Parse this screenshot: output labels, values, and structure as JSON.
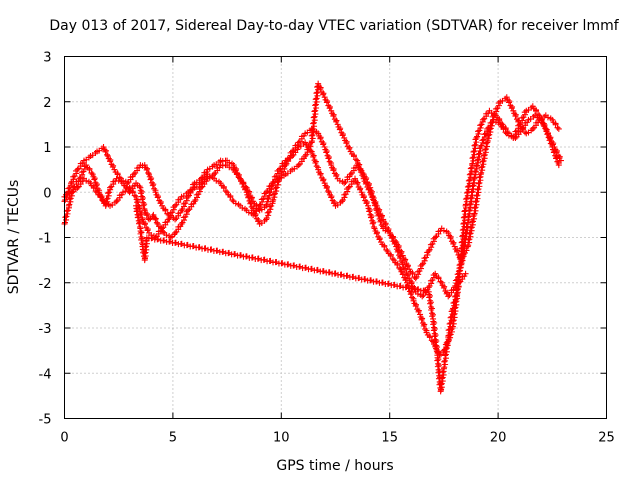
{
  "chart_data": {
    "type": "scatter",
    "title": "Day 013 of 2017, Sidereal Day-to-day VTEC variation (SDTVAR) for receiver lmmf",
    "xlabel": "GPS time / hours",
    "ylabel": "SDTVAR / TECUs",
    "xlim": [
      0,
      25
    ],
    "ylim": [
      -5,
      3
    ],
    "xticks": [
      "0",
      "5",
      "10",
      "15",
      "20",
      "25"
    ],
    "yticks": [
      "-5",
      "-4",
      "-3",
      "-2",
      "-1",
      "0",
      "1",
      "2",
      "3"
    ],
    "grid": true,
    "marker": "plus",
    "color": "#ff0000",
    "series": [
      {
        "x": [
          0.0,
          0.2,
          0.4,
          0.7,
          1.0,
          1.3,
          1.6,
          1.9,
          2.1,
          2.4,
          2.7,
          3.0,
          3.3,
          3.5,
          3.7,
          3.9,
          4.1,
          4.3,
          4.6,
          4.9,
          5.1,
          5.4,
          5.7,
          6.0,
          6.3,
          6.6,
          6.9,
          7.2,
          7.5,
          7.8,
          8.1,
          8.4,
          8.7,
          9.0,
          9.3,
          9.6,
          9.9,
          10.2,
          10.5,
          10.8,
          11.1,
          11.4,
          11.7,
          12.0,
          12.2,
          12.5,
          12.8,
          13.1,
          13.4,
          13.7,
          14.0,
          14.3,
          14.6,
          14.9,
          15.2,
          15.5,
          15.8,
          16.1,
          16.4,
          16.7,
          17.0,
          17.3,
          17.5,
          17.7,
          17.9,
          18.1,
          18.3,
          18.5,
          18.8,
          19.0,
          19.3,
          19.6,
          19.9,
          20.2,
          20.5,
          20.8,
          21.1,
          21.4,
          21.7,
          22.0,
          22.3,
          22.6,
          22.9
        ],
        "y": [
          -0.7,
          -0.3,
          0.1,
          0.3,
          0.6,
          0.4,
          0.0,
          -0.3,
          0.1,
          0.3,
          0.2,
          0.0,
          0.2,
          0.1,
          -0.4,
          -0.6,
          -0.5,
          -0.7,
          -0.9,
          -1.0,
          -0.9,
          -0.7,
          -0.4,
          -0.2,
          0.1,
          0.3,
          0.4,
          0.6,
          0.6,
          0.5,
          0.3,
          0.1,
          -0.2,
          -0.4,
          -0.3,
          0.2,
          0.5,
          0.7,
          0.8,
          1.0,
          1.1,
          0.9,
          0.5,
          0.2,
          0.0,
          -0.3,
          -0.2,
          0.1,
          0.3,
          0.0,
          -0.3,
          -0.8,
          -1.1,
          -1.3,
          -1.5,
          -1.7,
          -2.0,
          -2.4,
          -2.7,
          -3.1,
          -3.3,
          -3.6,
          -3.5,
          -3.3,
          -3.0,
          -2.3,
          -1.4,
          -0.3,
          0.6,
          1.2,
          1.6,
          1.8,
          1.7,
          1.5,
          1.3,
          1.2,
          1.4,
          1.6,
          1.7,
          1.6,
          1.3,
          1.0,
          0.7
        ]
      },
      {
        "x": [
          0.0,
          0.3,
          0.6,
          0.9,
          1.2,
          1.5,
          1.8,
          2.0,
          2.3,
          2.6,
          2.9,
          3.2,
          3.5,
          3.7,
          3.9,
          4.2,
          4.5,
          4.8,
          5.1,
          5.4,
          5.7,
          6.0,
          6.3,
          6.6,
          6.9,
          7.2,
          7.5,
          7.8,
          8.1,
          8.4,
          8.7,
          9.0,
          9.3,
          9.6,
          9.9,
          10.2,
          10.5,
          10.8,
          11.1,
          11.4,
          11.7,
          12.0,
          12.3,
          12.6,
          12.9,
          13.2,
          13.5,
          13.8,
          14.1,
          14.4,
          14.7,
          15.0,
          15.3,
          15.6,
          15.9,
          16.2,
          16.5,
          16.8,
          17.1,
          17.4,
          17.7,
          18.0,
          18.3,
          18.6,
          18.9,
          19.2,
          19.5,
          19.8,
          20.1,
          20.4,
          20.7,
          21.0,
          21.3,
          21.6,
          21.9,
          22.2,
          22.5,
          22.8
        ],
        "y": [
          -0.2,
          0.2,
          0.5,
          0.7,
          0.8,
          0.9,
          1.0,
          0.8,
          0.5,
          0.3,
          0.2,
          0.4,
          0.6,
          0.6,
          0.4,
          0.0,
          -0.3,
          -0.5,
          -0.6,
          -0.4,
          -0.1,
          0.2,
          0.3,
          0.5,
          0.6,
          0.7,
          0.7,
          0.6,
          0.3,
          0.0,
          -0.4,
          -0.7,
          -0.6,
          -0.2,
          0.3,
          0.6,
          0.9,
          1.1,
          1.3,
          1.4,
          1.3,
          1.0,
          0.6,
          0.3,
          0.2,
          0.4,
          0.6,
          0.4,
          0.1,
          -0.4,
          -0.8,
          -0.9,
          -1.2,
          -1.6,
          -1.9,
          -2.2,
          -2.3,
          -2.1,
          -1.8,
          -2.0,
          -2.3,
          -2.1,
          -1.6,
          -0.7,
          0.3,
          1.0,
          1.4,
          1.6,
          1.5,
          1.3,
          1.2,
          1.5,
          1.8,
          1.9,
          1.7,
          1.4,
          1.0,
          0.6
        ]
      },
      {
        "x": [
          0.0,
          0.3,
          0.6,
          0.9,
          1.2,
          1.5,
          1.8,
          2.1,
          2.4,
          2.7,
          3.0,
          3.3,
          3.6,
          3.9,
          4.2,
          4.5,
          4.8,
          5.1,
          5.4,
          5.7,
          6.0,
          6.3,
          6.6,
          6.9,
          7.2,
          7.5,
          7.8,
          8.1,
          8.4,
          8.7,
          9.0,
          9.3,
          9.6,
          9.9,
          10.2,
          10.5,
          10.8,
          11.1,
          11.4,
          11.7,
          12.0,
          12.3,
          12.6,
          12.9,
          13.2,
          13.5,
          13.8,
          14.1,
          14.4,
          14.7,
          15.0,
          15.3,
          15.6,
          15.9,
          16.2,
          16.5,
          16.8,
          17.1,
          17.4,
          17.7,
          18.0,
          18.3,
          18.6,
          18.9,
          19.2,
          19.5,
          19.8,
          20.1,
          20.4,
          20.7,
          21.0,
          21.3,
          21.6,
          21.9,
          22.2,
          22.5,
          22.8
        ],
        "y": [
          -0.1,
          0.0,
          0.1,
          0.3,
          0.2,
          0.0,
          -0.2,
          -0.3,
          -0.2,
          0.0,
          0.1,
          -0.1,
          -0.6,
          -0.9,
          -1.0,
          -0.8,
          -0.6,
          -0.3,
          -0.1,
          0.0,
          0.1,
          0.2,
          0.4,
          0.3,
          0.2,
          0.0,
          -0.2,
          -0.3,
          -0.4,
          -0.5,
          -0.3,
          0.0,
          0.2,
          0.3,
          0.4,
          0.5,
          0.6,
          0.8,
          1.1,
          2.4,
          2.1,
          1.8,
          1.5,
          1.2,
          0.9,
          0.7,
          0.3,
          0.0,
          -0.3,
          -0.6,
          -0.9,
          -1.1,
          -1.4,
          -1.7,
          -1.9,
          -1.6,
          -1.3,
          -1.0,
          -0.8,
          -0.9,
          -1.2,
          -1.5,
          -1.2,
          -0.5,
          0.4,
          1.1,
          1.7,
          2.0,
          2.1,
          1.8,
          1.5,
          1.3,
          1.4,
          1.6,
          1.7,
          1.6,
          1.4
        ]
      },
      {
        "x": [
          3.3,
          3.5,
          3.6,
          3.7,
          3.8,
          16.8,
          17.0,
          17.2,
          17.35,
          17.5,
          17.7,
          17.9,
          18.2,
          18.5
        ],
        "y": [
          -0.3,
          -0.8,
          -1.2,
          -1.5,
          -1.0,
          -2.2,
          -2.8,
          -3.6,
          -4.4,
          -3.9,
          -3.2,
          -2.6,
          -2.0,
          -1.8
        ]
      }
    ]
  }
}
